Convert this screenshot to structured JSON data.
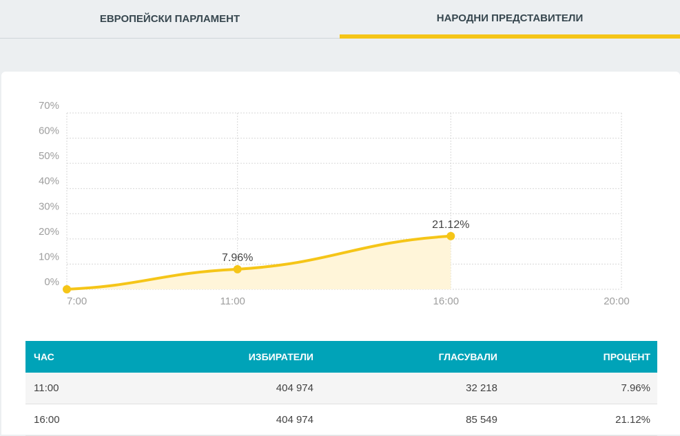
{
  "tabs": [
    {
      "label": "ЕВРОПЕЙСКИ ПАРЛАМЕНТ",
      "active": false
    },
    {
      "label": "НАРОДНИ ПРЕДСТАВИТЕЛИ",
      "active": true
    }
  ],
  "colors": {
    "accent": "#f5c518",
    "table_header": "#00a3b8",
    "area_fill": "#fff5d9"
  },
  "chart_data": {
    "type": "area",
    "x_ticks": [
      "7:00",
      "11:00",
      "16:00",
      "20:00"
    ],
    "x_hours": [
      7,
      11,
      16,
      20
    ],
    "y_ticks": [
      "0%",
      "10%",
      "20%",
      "30%",
      "40%",
      "50%",
      "60%",
      "70%"
    ],
    "ylim": [
      0,
      70
    ],
    "grid": true,
    "series": [
      {
        "points": [
          {
            "x": "7:00",
            "y": 0
          },
          {
            "x": "11:00",
            "y": 7.96
          },
          {
            "x": "16:00",
            "y": 21.12
          }
        ],
        "labels": [
          "",
          "7.96%",
          "21.12%"
        ]
      }
    ]
  },
  "table": {
    "headers": [
      "ЧАС",
      "ИЗБИРАТЕЛИ",
      "ГЛАСУВАЛИ",
      "ПРОЦЕНТ"
    ],
    "rows": [
      [
        "11:00",
        "404 974",
        "32 218",
        "7.96%"
      ],
      [
        "16:00",
        "404 974",
        "85 549",
        "21.12%"
      ]
    ]
  }
}
